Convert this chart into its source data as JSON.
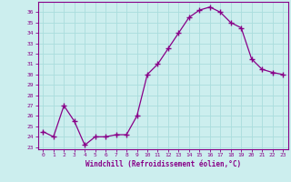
{
  "x": [
    0,
    1,
    2,
    3,
    4,
    5,
    6,
    7,
    8,
    9,
    10,
    11,
    12,
    13,
    14,
    15,
    16,
    17,
    18,
    19,
    20,
    21,
    22,
    23
  ],
  "y": [
    24.5,
    24.0,
    27.0,
    25.5,
    23.2,
    24.0,
    24.0,
    24.2,
    24.2,
    26.0,
    30.0,
    31.0,
    32.5,
    34.0,
    35.5,
    36.2,
    36.5,
    36.0,
    35.0,
    34.5,
    31.5,
    30.5,
    30.2,
    30.0
  ],
  "line_color": "#880088",
  "marker": "+",
  "bg_color": "#cceeee",
  "grid_color": "#aadddd",
  "xlabel": "Windchill (Refroidissement éolien,°C)",
  "xlabel_color": "#880088",
  "ylabel_ticks": [
    23,
    24,
    25,
    26,
    27,
    28,
    29,
    30,
    31,
    32,
    33,
    34,
    35,
    36
  ],
  "ylim": [
    22.8,
    37.0
  ],
  "xlim": [
    -0.5,
    23.5
  ],
  "tick_color": "#880088",
  "spine_color": "#880088"
}
